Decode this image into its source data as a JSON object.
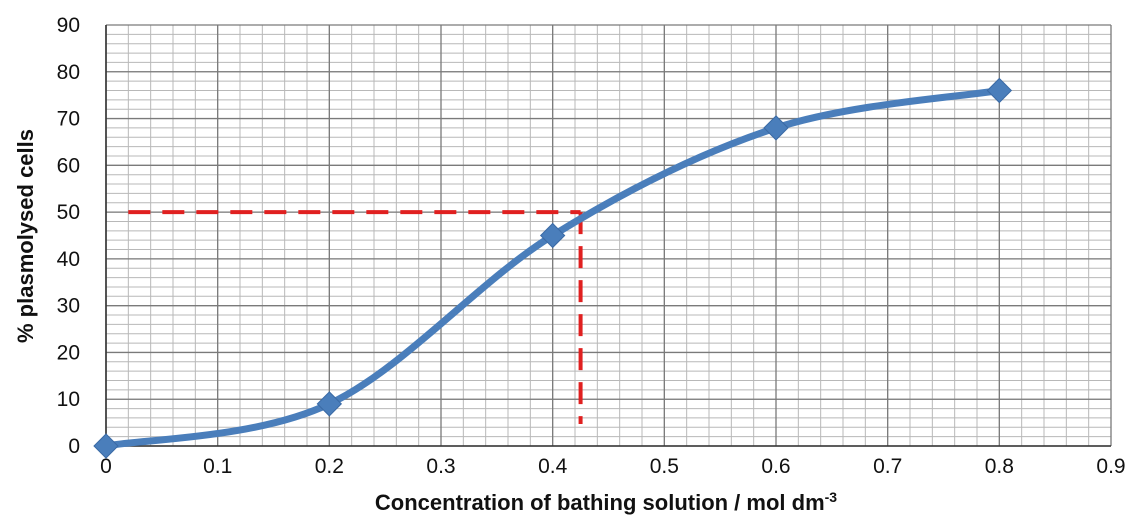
{
  "chart_data": {
    "type": "line",
    "xlabel": "Concentration of bathing solution / mol dm",
    "xlabel_superscript": "-3",
    "ylabel": "% plasmolysed cells",
    "x_ticks": [
      "0",
      "0.1",
      "0.2",
      "0.3",
      "0.4",
      "0.5",
      "0.6",
      "0.7",
      "0.8",
      "0.9"
    ],
    "y_ticks": [
      "0",
      "10",
      "20",
      "30",
      "40",
      "50",
      "60",
      "70",
      "80",
      "90"
    ],
    "xlim": [
      0,
      0.9
    ],
    "ylim": [
      0,
      90
    ],
    "grid": true,
    "minor_grid": true,
    "series": [
      {
        "color": "#4a7ebb",
        "marker": "diamond",
        "smooth": true,
        "x": [
          0,
          0.2,
          0.4,
          0.6,
          0.8
        ],
        "y": [
          0,
          9,
          45,
          68,
          76
        ]
      }
    ],
    "annotations": [
      {
        "type": "dashed-guide-line",
        "color": "#e02020",
        "description": "horizontal at 50% to curve, then vertical down to x axis",
        "y_value": 50,
        "x_value": 0.425
      }
    ]
  }
}
